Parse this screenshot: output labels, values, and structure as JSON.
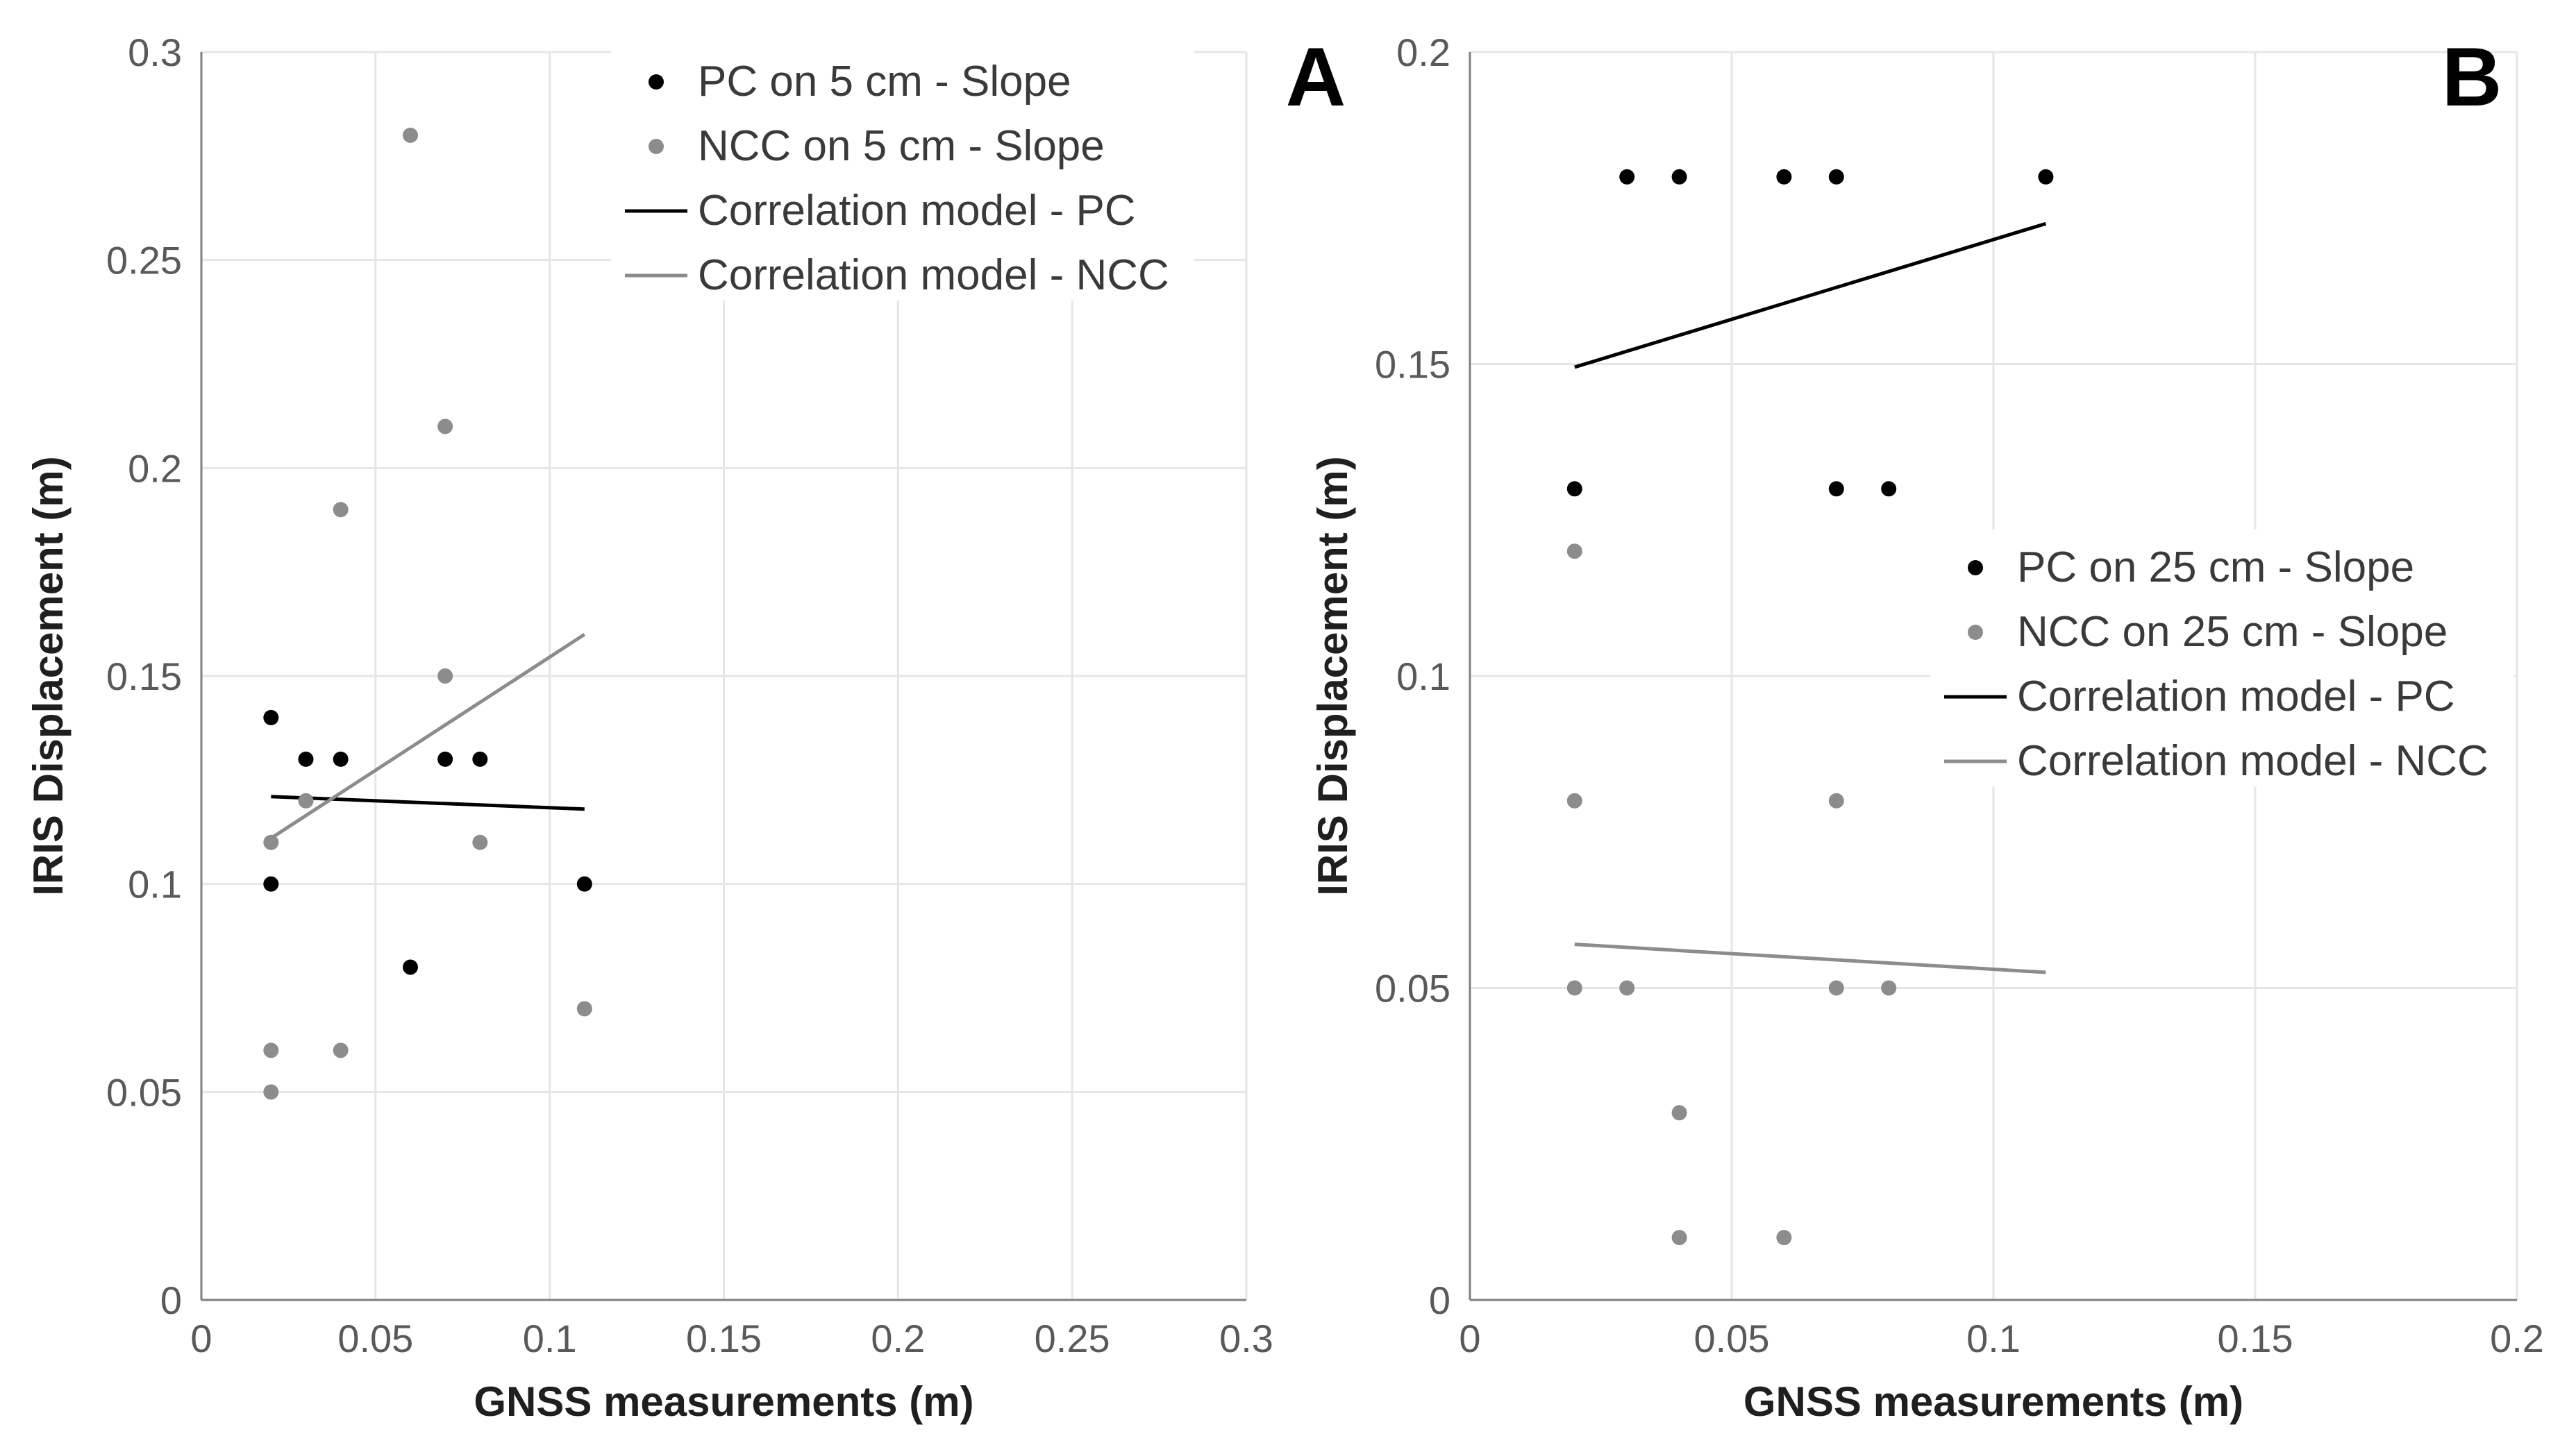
{
  "chart_data": [
    {
      "type": "scatter",
      "panel_label": "A",
      "xlabel": "GNSS measurements (m)",
      "ylabel": "IRIS Displacement (m)",
      "xlim": [
        0,
        0.3
      ],
      "ylim": [
        0,
        0.3
      ],
      "xticks": [
        "0",
        "0.05",
        "0.1",
        "0.15",
        "0.2",
        "0.25",
        "0.3"
      ],
      "yticks": [
        "0",
        "0.05",
        "0.1",
        "0.15",
        "0.2",
        "0.25",
        "0.3"
      ],
      "legend_position": "top-right",
      "series": [
        {
          "name": "PC on 5 cm - Slope",
          "kind": "points",
          "color": "#000000",
          "x": [
            0.02,
            0.02,
            0.03,
            0.04,
            0.06,
            0.07,
            0.08,
            0.11
          ],
          "y": [
            0.14,
            0.1,
            0.13,
            0.13,
            0.08,
            0.13,
            0.13,
            0.1
          ]
        },
        {
          "name": "NCC on 5 cm - Slope",
          "kind": "points",
          "color": "#8c8c8c",
          "x": [
            0.02,
            0.02,
            0.02,
            0.03,
            0.04,
            0.04,
            0.06,
            0.07,
            0.07,
            0.08,
            0.11
          ],
          "y": [
            0.11,
            0.06,
            0.05,
            0.12,
            0.19,
            0.06,
            0.28,
            0.21,
            0.15,
            0.11,
            0.07
          ]
        },
        {
          "name": "Correlation model - PC",
          "kind": "line",
          "color": "#000000",
          "x": [
            0.02,
            0.11
          ],
          "y": [
            0.121,
            0.118
          ]
        },
        {
          "name": "Correlation model - NCC",
          "kind": "line",
          "color": "#8c8c8c",
          "x": [
            0.02,
            0.11
          ],
          "y": [
            0.111,
            0.16
          ]
        }
      ]
    },
    {
      "type": "scatter",
      "panel_label": "B",
      "xlabel": "GNSS measurements (m)",
      "ylabel": "IRIS Displacement (m)",
      "xlim": [
        0,
        0.2
      ],
      "ylim": [
        0,
        0.2
      ],
      "xticks": [
        "0",
        "0.05",
        "0.1",
        "0.15",
        "0.2"
      ],
      "yticks": [
        "0",
        "0.05",
        "0.1",
        "0.15",
        "0.2"
      ],
      "legend_position": "middle-right",
      "series": [
        {
          "name": "PC on 25 cm - Slope",
          "kind": "points",
          "color": "#000000",
          "x": [
            0.03,
            0.04,
            0.06,
            0.07,
            0.11,
            0.02,
            0.07,
            0.08
          ],
          "y": [
            0.18,
            0.18,
            0.18,
            0.18,
            0.18,
            0.13,
            0.13,
            0.13
          ]
        },
        {
          "name": "NCC on 25 cm - Slope",
          "kind": "points",
          "color": "#8c8c8c",
          "x": [
            0.02,
            0.02,
            0.07,
            0.02,
            0.03,
            0.07,
            0.08,
            0.04,
            0.04,
            0.06
          ],
          "y": [
            0.12,
            0.08,
            0.08,
            0.05,
            0.05,
            0.05,
            0.05,
            0.03,
            0.01,
            0.01
          ]
        },
        {
          "name": "Correlation model - PC",
          "kind": "line",
          "color": "#000000",
          "x": [
            0.02,
            0.11
          ],
          "y": [
            0.1495,
            0.1725
          ]
        },
        {
          "name": "Correlation model - NCC",
          "kind": "line",
          "color": "#8c8c8c",
          "x": [
            0.02,
            0.11
          ],
          "y": [
            0.057,
            0.0525
          ]
        }
      ]
    }
  ]
}
